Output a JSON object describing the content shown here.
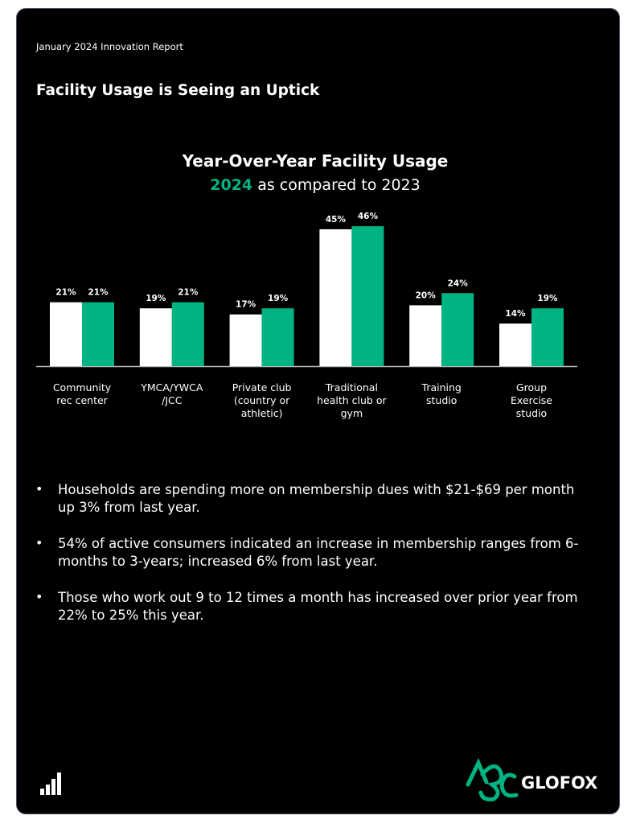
{
  "header": {
    "report": "January 2024 Innovation Report",
    "title": "Facility Usage is Seeing an Uptick"
  },
  "chart_data": {
    "type": "bar",
    "title": "Year-Over-Year Facility Usage",
    "subtitle_text": "as compared to",
    "categories": [
      "Community\nrec center",
      "YMCA/YWCA\n/JCC",
      "Private club\n(country or\nathletic)",
      "Traditional\nhealth club or\ngym",
      "Training\nstudio",
      "Group\nExercise\nstudio"
    ],
    "series": [
      {
        "name": "2023",
        "color": "#ffffff",
        "values": [
          21,
          19,
          17,
          45,
          20,
          14
        ],
        "value_labels": [
          "21%",
          "19%",
          "17%",
          "45%",
          "20%",
          "14%"
        ]
      },
      {
        "name": "2024",
        "color": "#00b383",
        "values": [
          21,
          21,
          19,
          46,
          24,
          19
        ],
        "value_labels": [
          "21%",
          "21%",
          "19%",
          "46%",
          "24%",
          "19%"
        ]
      }
    ]
  },
  "bullets": [
    "Households are spending more on membership dues with $21-$69 per month up 3% from last year.",
    "54% of active consumers indicated an increase in membership ranges from 6-months to 3-years; increased 6% from last year.",
    "Those who work out 9 to 12 times a month has increased over prior year from 22% to 25% this year."
  ],
  "footer": {
    "brand": "GLOFOX"
  }
}
